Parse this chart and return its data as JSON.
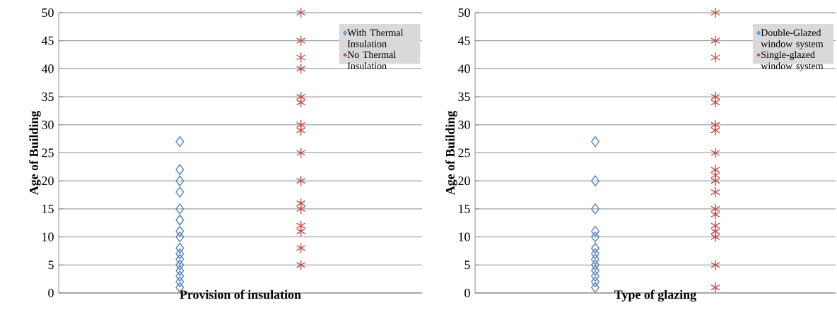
{
  "chart_data": [
    {
      "type": "scatter",
      "xlabel": "Provision of insulation",
      "ylabel": "Age of Building",
      "categories": [
        null,
        null
      ],
      "ylim": [
        0,
        50
      ],
      "yticks": [
        0,
        5,
        10,
        15,
        20,
        25,
        30,
        35,
        40,
        45,
        50
      ],
      "tick_labels": "y",
      "grid": "y",
      "legend": "top right",
      "series": [
        {
          "name": "With Thermal Insulation",
          "color": "#4f81bd",
          "marker": "diamond",
          "values": [
            27,
            null
          ]
        },
        {
          "color": "#4f81bd",
          "marker": "diamond",
          "values": [
            22,
            null
          ]
        },
        {
          "color": "#4f81bd",
          "marker": "diamond",
          "values": [
            20,
            null
          ]
        },
        {
          "color": "#4f81bd",
          "marker": "diamond",
          "values": [
            18,
            null
          ]
        },
        {
          "color": "#4f81bd",
          "marker": "diamond",
          "values": [
            15,
            null
          ]
        },
        {
          "color": "#4f81bd",
          "marker": "diamond",
          "values": [
            13,
            null
          ]
        },
        {
          "color": "#4f81bd",
          "marker": "diamond",
          "values": [
            11,
            null
          ]
        },
        {
          "color": "#4f81bd",
          "marker": "diamond",
          "values": [
            10,
            null
          ]
        },
        {
          "color": "#4f81bd",
          "marker": "diamond",
          "values": [
            8,
            null
          ]
        },
        {
          "color": "#4f81bd",
          "marker": "diamond",
          "values": [
            7,
            null
          ]
        },
        {
          "color": "#4f81bd",
          "marker": "diamond",
          "values": [
            6,
            null
          ]
        },
        {
          "color": "#4f81bd",
          "marker": "diamond",
          "values": [
            5,
            null
          ]
        },
        {
          "color": "#4f81bd",
          "marker": "diamond",
          "values": [
            4,
            null
          ]
        },
        {
          "color": "#4f81bd",
          "marker": "diamond",
          "values": [
            3,
            null
          ]
        },
        {
          "color": "#4f81bd",
          "marker": "diamond",
          "values": [
            2,
            null
          ]
        },
        {
          "color": "#4f81bd",
          "marker": "diamond",
          "values": [
            1,
            null
          ]
        },
        {
          "name": "No Thermal Insulation",
          "color": "#c0504d",
          "marker": "cross",
          "values": [
            null,
            50
          ]
        },
        {
          "color": "#c0504d",
          "marker": "cross",
          "values": [
            null,
            45
          ]
        },
        {
          "color": "#c0504d",
          "marker": "cross",
          "values": [
            null,
            42
          ]
        },
        {
          "color": "#c0504d",
          "marker": "cross",
          "values": [
            null,
            40
          ]
        },
        {
          "color": "#c0504d",
          "marker": "cross",
          "values": [
            null,
            35
          ]
        },
        {
          "color": "#c0504d",
          "marker": "cross",
          "values": [
            null,
            34
          ]
        },
        {
          "color": "#c0504d",
          "marker": "cross",
          "values": [
            null,
            30
          ]
        },
        {
          "color": "#c0504d",
          "marker": "cross",
          "values": [
            null,
            29
          ]
        },
        {
          "color": "#c0504d",
          "marker": "cross",
          "values": [
            null,
            25
          ]
        },
        {
          "color": "#c0504d",
          "marker": "cross",
          "values": [
            null,
            20
          ]
        },
        {
          "color": "#c0504d",
          "marker": "cross",
          "values": [
            null,
            16
          ]
        },
        {
          "color": "#c0504d",
          "marker": "cross",
          "values": [
            null,
            15
          ]
        },
        {
          "color": "#c0504d",
          "marker": "cross",
          "values": [
            null,
            12
          ]
        },
        {
          "color": "#c0504d",
          "marker": "cross",
          "values": [
            null,
            11
          ]
        },
        {
          "color": "#c0504d",
          "marker": "cross",
          "values": [
            null,
            8
          ]
        },
        {
          "color": "#c0504d",
          "marker": "cross",
          "values": [
            null,
            5
          ]
        }
      ]
    },
    {
      "type": "scatter",
      "xlabel": "Type of glazing",
      "ylabel": "Age of Building",
      "categories": [
        null,
        null
      ],
      "ylim": [
        0,
        50
      ],
      "yticks": [
        0,
        5,
        10,
        15,
        20,
        25,
        30,
        35,
        40,
        45,
        50
      ],
      "tick_labels": "y",
      "grid": "y",
      "legend": "top right",
      "series": [
        {
          "name": "Double-Glazed window system",
          "color": "#4f81bd",
          "marker": "diamond",
          "values": [
            27,
            null
          ]
        },
        {
          "color": "#4f81bd",
          "marker": "diamond",
          "values": [
            20,
            null
          ]
        },
        {
          "color": "#4f81bd",
          "marker": "diamond",
          "values": [
            15,
            null
          ]
        },
        {
          "color": "#4f81bd",
          "marker": "diamond",
          "values": [
            11,
            null
          ]
        },
        {
          "color": "#4f81bd",
          "marker": "diamond",
          "values": [
            10,
            null
          ]
        },
        {
          "color": "#4f81bd",
          "marker": "diamond",
          "values": [
            8,
            null
          ]
        },
        {
          "color": "#4f81bd",
          "marker": "diamond",
          "values": [
            7,
            null
          ]
        },
        {
          "color": "#4f81bd",
          "marker": "diamond",
          "values": [
            6,
            null
          ]
        },
        {
          "color": "#4f81bd",
          "marker": "diamond",
          "values": [
            5,
            null
          ]
        },
        {
          "color": "#4f81bd",
          "marker": "diamond",
          "values": [
            4,
            null
          ]
        },
        {
          "color": "#4f81bd",
          "marker": "diamond",
          "values": [
            3,
            null
          ]
        },
        {
          "color": "#4f81bd",
          "marker": "diamond",
          "values": [
            2,
            null
          ]
        },
        {
          "color": "#4f81bd",
          "marker": "diamond",
          "values": [
            1,
            null
          ]
        },
        {
          "name": "Single-glazed window system",
          "color": "#c0504d",
          "marker": "cross",
          "values": [
            null,
            50
          ]
        },
        {
          "color": "#c0504d",
          "marker": "cross",
          "values": [
            null,
            45
          ]
        },
        {
          "color": "#c0504d",
          "marker": "cross",
          "values": [
            null,
            42
          ]
        },
        {
          "color": "#c0504d",
          "marker": "cross",
          "values": [
            null,
            35
          ]
        },
        {
          "color": "#c0504d",
          "marker": "cross",
          "values": [
            null,
            34
          ]
        },
        {
          "color": "#c0504d",
          "marker": "cross",
          "values": [
            null,
            30
          ]
        },
        {
          "color": "#c0504d",
          "marker": "cross",
          "values": [
            null,
            29
          ]
        },
        {
          "color": "#c0504d",
          "marker": "cross",
          "values": [
            null,
            25
          ]
        },
        {
          "color": "#c0504d",
          "marker": "cross",
          "values": [
            null,
            22
          ]
        },
        {
          "color": "#c0504d",
          "marker": "cross",
          "values": [
            null,
            21
          ]
        },
        {
          "color": "#c0504d",
          "marker": "cross",
          "values": [
            null,
            20
          ]
        },
        {
          "color": "#c0504d",
          "marker": "cross",
          "values": [
            null,
            18
          ]
        },
        {
          "color": "#c0504d",
          "marker": "cross",
          "values": [
            null,
            15
          ]
        },
        {
          "color": "#c0504d",
          "marker": "cross",
          "values": [
            null,
            14
          ]
        },
        {
          "color": "#c0504d",
          "marker": "cross",
          "values": [
            null,
            12
          ]
        },
        {
          "color": "#c0504d",
          "marker": "cross",
          "values": [
            null,
            11
          ]
        },
        {
          "color": "#c0504d",
          "marker": "cross",
          "values": [
            null,
            10
          ]
        },
        {
          "color": "#c0504d",
          "marker": "cross",
          "values": [
            null,
            5
          ]
        },
        {
          "color": "#c0504d",
          "marker": "cross",
          "values": [
            null,
            1
          ]
        }
      ]
    }
  ]
}
